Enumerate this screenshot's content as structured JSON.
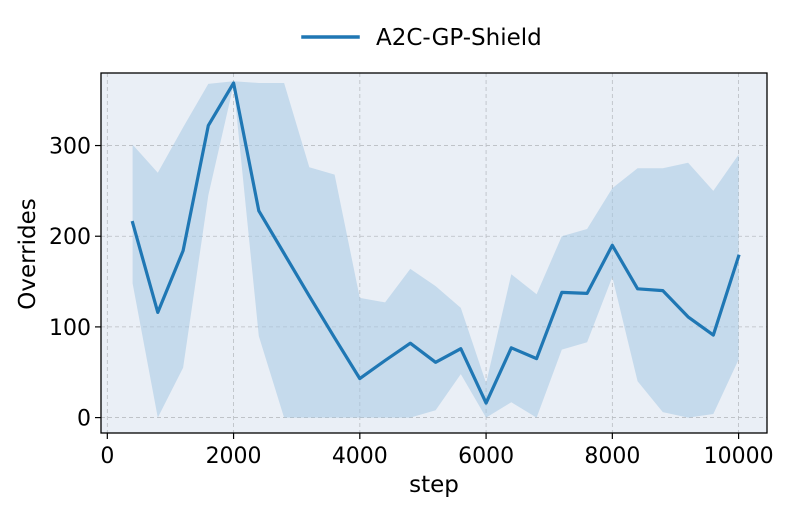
{
  "chart_data": {
    "type": "line",
    "title": "",
    "xlabel": "step",
    "ylabel": "Overrides",
    "xlim": [
      -100,
      10450
    ],
    "ylim": [
      -17,
      380
    ],
    "xticks": [
      0,
      2000,
      4000,
      6000,
      8000,
      10000
    ],
    "yticks": [
      0,
      100,
      200,
      300
    ],
    "grid": true,
    "legend_position": "top-center",
    "series": [
      {
        "name": "A2C-GP-Shield",
        "color": "#1f77b4",
        "band_color": "#a6c8e4",
        "x": [
          400,
          800,
          1200,
          1600,
          2000,
          2400,
          2800,
          3200,
          3600,
          4000,
          4400,
          4800,
          5200,
          5600,
          6000,
          6400,
          6800,
          7200,
          7600,
          8000,
          8400,
          8800,
          9200,
          9600,
          10000
        ],
        "y": [
          215,
          116,
          184,
          322,
          369,
          228,
          181,
          134,
          88,
          43,
          63,
          82,
          61,
          76,
          16,
          77,
          65,
          138,
          137,
          190,
          142,
          140,
          111,
          91,
          178
        ],
        "upper": [
          301,
          270,
          320,
          368,
          371,
          369,
          369,
          276,
          268,
          132,
          127,
          164,
          145,
          121,
          38,
          158,
          136,
          200,
          208,
          253,
          275,
          275,
          281,
          250,
          290
        ],
        "lower": [
          148,
          0,
          55,
          245,
          367,
          90,
          0,
          0,
          0,
          0,
          0,
          0,
          8,
          48,
          0,
          17,
          0,
          75,
          83,
          155,
          40,
          6,
          0,
          4,
          64
        ]
      }
    ]
  }
}
